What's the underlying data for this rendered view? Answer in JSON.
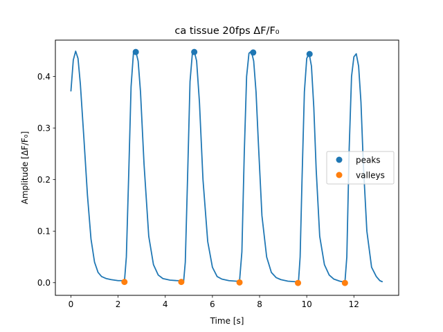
{
  "chart_data": {
    "type": "line",
    "title": "ca tissue 20fps ΔF/F₀",
    "xlabel": "Time [s]",
    "ylabel": "Amplitude [ΔF/F₀]",
    "xlim": [
      -0.66,
      13.9
    ],
    "ylim": [
      -0.0245,
      0.4705
    ],
    "xticks": [
      0,
      2,
      4,
      6,
      8,
      10,
      12
    ],
    "yticks": [
      0.0,
      0.1,
      0.2,
      0.3,
      0.4
    ],
    "ytick_labels": [
      "0.0",
      "0.1",
      "0.2",
      "0.3",
      "0.4"
    ],
    "grid": false,
    "legend_position": "center-right",
    "series": [
      {
        "name": "",
        "kind": "line",
        "color": "#1f77b4",
        "x": [
          0.0,
          0.1,
          0.2,
          0.3,
          0.4,
          0.55,
          0.7,
          0.85,
          1.0,
          1.15,
          1.3,
          1.5,
          1.7,
          2.0,
          2.2,
          2.27,
          2.35,
          2.45,
          2.55,
          2.65,
          2.75,
          2.85,
          2.95,
          3.1,
          3.3,
          3.5,
          3.7,
          3.9,
          4.2,
          4.5,
          4.7,
          4.78,
          4.85,
          4.95,
          5.05,
          5.15,
          5.23,
          5.33,
          5.45,
          5.6,
          5.8,
          6.0,
          6.2,
          6.4,
          6.7,
          7.0,
          7.15,
          7.25,
          7.35,
          7.45,
          7.55,
          7.65,
          7.75,
          7.85,
          7.95,
          8.1,
          8.3,
          8.5,
          8.7,
          8.9,
          9.2,
          9.5,
          9.65,
          9.72,
          9.8,
          9.9,
          10.0,
          10.1,
          10.2,
          10.3,
          10.4,
          10.55,
          10.75,
          10.95,
          11.15,
          11.4,
          11.62,
          11.7,
          11.8,
          11.9,
          12.0,
          12.1,
          12.2,
          12.3,
          12.4,
          12.55,
          12.75,
          12.95,
          13.1,
          13.2
        ],
        "y": [
          0.372,
          0.432,
          0.449,
          0.435,
          0.385,
          0.28,
          0.17,
          0.085,
          0.04,
          0.02,
          0.012,
          0.008,
          0.006,
          0.004,
          0.004,
          0.003,
          0.05,
          0.21,
          0.38,
          0.445,
          0.449,
          0.43,
          0.37,
          0.23,
          0.09,
          0.035,
          0.015,
          0.008,
          0.005,
          0.004,
          0.004,
          0.003,
          0.04,
          0.21,
          0.39,
          0.445,
          0.449,
          0.43,
          0.35,
          0.2,
          0.08,
          0.03,
          0.012,
          0.007,
          0.004,
          0.003,
          0.003,
          0.06,
          0.25,
          0.4,
          0.445,
          0.449,
          0.43,
          0.37,
          0.27,
          0.13,
          0.05,
          0.02,
          0.01,
          0.006,
          0.003,
          0.002,
          0.002,
          0.05,
          0.2,
          0.37,
          0.435,
          0.445,
          0.42,
          0.34,
          0.22,
          0.09,
          0.035,
          0.015,
          0.007,
          0.003,
          0.001,
          0.05,
          0.26,
          0.4,
          0.438,
          0.444,
          0.42,
          0.35,
          0.23,
          0.1,
          0.03,
          0.012,
          0.004,
          0.002
        ]
      },
      {
        "name": "peaks",
        "kind": "scatter",
        "color": "#1f77b4",
        "x": [
          2.75,
          5.23,
          7.73,
          10.12
        ],
        "y": [
          0.4475,
          0.4475,
          0.4465,
          0.4435
        ]
      },
      {
        "name": "valleys",
        "kind": "scatter",
        "color": "#ff7f0e",
        "x": [
          2.27,
          4.68,
          7.15,
          9.63,
          11.62
        ],
        "y": [
          0.0015,
          0.0015,
          0.0005,
          -0.0005,
          -0.0005
        ]
      }
    ]
  }
}
